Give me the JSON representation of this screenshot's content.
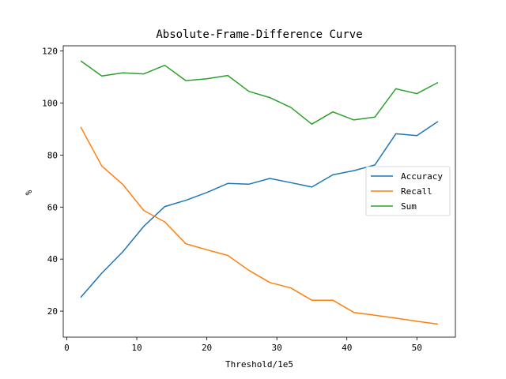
{
  "chart_data": {
    "type": "line",
    "title": "Absolute-Frame-Difference Curve",
    "xlabel": "Threshold/1e5",
    "ylabel": "%",
    "xlim": [
      -0.5,
      55.5
    ],
    "ylim": [
      10,
      122
    ],
    "xticks": [
      0,
      10,
      20,
      30,
      40,
      50
    ],
    "yticks": [
      20,
      40,
      60,
      80,
      100,
      120
    ],
    "grid": false,
    "legend_position": "center-right",
    "x": [
      2,
      5,
      8,
      11,
      14,
      17,
      20,
      23,
      26,
      29,
      32,
      35,
      38,
      41,
      44,
      47,
      50,
      53
    ],
    "series": [
      {
        "name": "Accuracy",
        "color": "#1f77b4",
        "values": [
          25.3,
          34.6,
          42.8,
          52.6,
          60.2,
          62.6,
          65.6,
          69.1,
          68.8,
          71.0,
          69.4,
          67.7,
          72.4,
          74.0,
          76.2,
          88.2,
          87.5,
          92.9
        ]
      },
      {
        "name": "Recall",
        "color": "#ff7f0e",
        "values": [
          90.8,
          75.8,
          68.7,
          58.7,
          54.3,
          45.9,
          43.6,
          41.4,
          35.7,
          31.0,
          28.9,
          24.2,
          24.2,
          19.5,
          18.4,
          17.3,
          16.1,
          15.0
        ]
      },
      {
        "name": "Sum",
        "color": "#2ca02c",
        "values": [
          116.2,
          110.4,
          111.6,
          111.2,
          114.5,
          108.6,
          109.3,
          110.6,
          104.5,
          102.1,
          98.3,
          91.9,
          96.6,
          93.5,
          94.6,
          105.5,
          103.6,
          107.9
        ]
      }
    ]
  }
}
